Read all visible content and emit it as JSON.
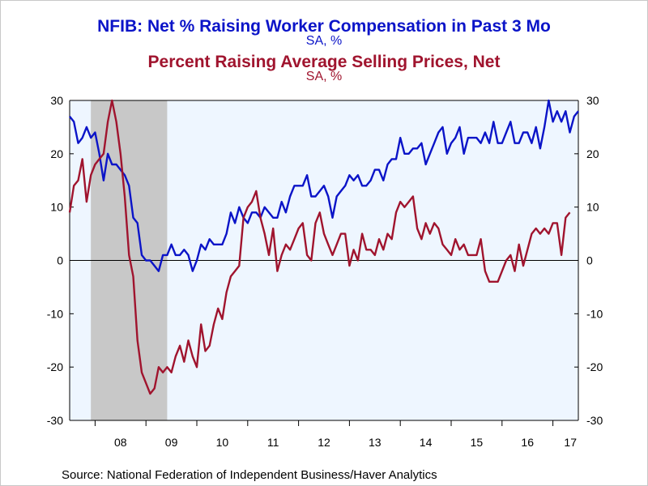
{
  "chart_data": {
    "type": "line",
    "title": "NFIB: Net % Raising Worker Compensation in Past 3 Mo",
    "subtitle": "SA, %",
    "title2": "Percent Raising Average Selling Prices, Net",
    "subtitle2": "SA, %",
    "source": "Source:  National Federation of Independent Business/Haver Analytics",
    "ylim": [
      -30,
      30
    ],
    "yticks": [
      -30,
      -20,
      -10,
      0,
      10,
      20,
      30
    ],
    "xlim": [
      2007.5,
      2017.5
    ],
    "xtick_labels": [
      {
        "label": "08",
        "x": 2008.5
      },
      {
        "label": "09",
        "x": 2009.5
      },
      {
        "label": "10",
        "x": 2010.5
      },
      {
        "label": "11",
        "x": 2011.5
      },
      {
        "label": "12",
        "x": 2012.5
      },
      {
        "label": "13",
        "x": 2013.5
      },
      {
        "label": "14",
        "x": 2014.5
      },
      {
        "label": "15",
        "x": 2015.5
      },
      {
        "label": "16",
        "x": 2016.5
      },
      {
        "label": "17",
        "x": 2017.5
      }
    ],
    "year_boundaries": [
      2008,
      2009,
      2010,
      2011,
      2012,
      2013,
      2014,
      2015,
      2016,
      2017
    ],
    "recession": [
      2007.917,
      2009.417
    ],
    "colors": {
      "compensation": "#0b14c8",
      "prices": "#a0142e",
      "plot_bg": "#eef6ff",
      "recession": "#c8c8c8"
    },
    "series": [
      {
        "name": "NFIB: Net % Raising Worker Compensation in Past 3 Mo",
        "color": "#0b14c8",
        "start": 2007.5,
        "step": 0.0833333,
        "values": [
          27,
          26,
          22,
          23,
          25,
          23,
          24,
          20,
          15,
          20,
          18,
          18,
          17,
          16,
          14,
          8,
          7,
          1,
          0,
          0,
          -1,
          -2,
          1,
          1,
          3,
          1,
          1,
          2,
          1,
          -2,
          0,
          3,
          2,
          4,
          3,
          3,
          3,
          5,
          9,
          7,
          10,
          8,
          7,
          9,
          9,
          8,
          10,
          9,
          8,
          8,
          11,
          9,
          12,
          14,
          14,
          14,
          16,
          12,
          12,
          13,
          14,
          12,
          8,
          12,
          13,
          14,
          16,
          15,
          16,
          14,
          14,
          15,
          17,
          17,
          15,
          18,
          19,
          19,
          23,
          20,
          20,
          21,
          21,
          22,
          18,
          20,
          22,
          24,
          25,
          20,
          22,
          23,
          25,
          20,
          23,
          23,
          23,
          22,
          24,
          22,
          26,
          22,
          22,
          24,
          26,
          22,
          22,
          24,
          24,
          22,
          25,
          21,
          25,
          30,
          26,
          28,
          26,
          28,
          24,
          27,
          28
        ]
      },
      {
        "name": "Percent Raising Average Selling Prices, Net",
        "color": "#a0142e",
        "start": 2007.5,
        "step": 0.0833333,
        "values": [
          9,
          14,
          15,
          19,
          11,
          16,
          18,
          19,
          20,
          26,
          30,
          26,
          20,
          12,
          1,
          -3,
          -15,
          -21,
          -23,
          -25,
          -24,
          -20,
          -21,
          -20,
          -21,
          -18,
          -16,
          -19,
          -15,
          -18,
          -20,
          -12,
          -17,
          -16,
          -12,
          -9,
          -11,
          -6,
          -3,
          -2,
          -1,
          8,
          10,
          11,
          13,
          8,
          5,
          1,
          6,
          -2,
          1,
          3,
          2,
          4,
          6,
          7,
          1,
          0,
          7,
          9,
          5,
          3,
          1,
          3,
          5,
          5,
          -1,
          2,
          0,
          5,
          2,
          2,
          1,
          4,
          2,
          5,
          4,
          9,
          11,
          10,
          11,
          12,
          6,
          4,
          7,
          5,
          7,
          6,
          3,
          2,
          1,
          4,
          2,
          3,
          1,
          1,
          1,
          4,
          -2,
          -4,
          -4,
          -4,
          -2,
          0,
          1,
          -2,
          3,
          -1,
          2,
          5,
          6,
          5,
          6,
          5,
          7,
          7,
          1,
          8,
          9
        ]
      }
    ]
  }
}
